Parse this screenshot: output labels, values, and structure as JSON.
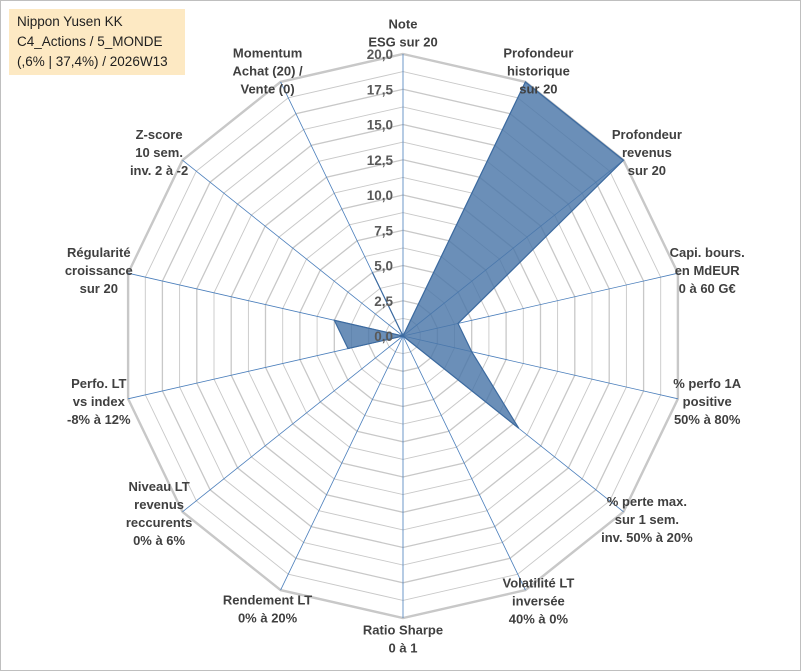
{
  "title_box": {
    "line1": "Nippon Yusen KK",
    "line2": "C4_Actions / 5_MONDE",
    "line3": "(,6% | 37,4%) / 2026W13"
  },
  "chart_data": {
    "type": "radar",
    "rmax": 20,
    "ticks": [
      "0,0",
      "2,5",
      "5,0",
      "7,5",
      "10,0",
      "12,5",
      "15,0",
      "17,5",
      "20,0"
    ],
    "tick_values": [
      0,
      2.5,
      5,
      7.5,
      10,
      12.5,
      15,
      17.5,
      20
    ],
    "minor_step": 1.25,
    "axes": [
      {
        "label": [
          "Note",
          "ESG sur 20"
        ],
        "value": 0
      },
      {
        "label": [
          "Profondeur",
          "historique",
          "sur 20"
        ],
        "value": 20
      },
      {
        "label": [
          "Profondeur",
          "revenus",
          "sur 20"
        ],
        "value": 20
      },
      {
        "label": [
          "Capi. bours.",
          "en MdEUR",
          "0 à 60 G€"
        ],
        "value": 4
      },
      {
        "label": [
          "% perfo 1A",
          "positive",
          "50% à 80%"
        ],
        "value": 5
      },
      {
        "label": [
          "% perte max.",
          "sur 1 sem.",
          "inv. 50% à 20%"
        ],
        "value": 10.5
      },
      {
        "label": [
          "Volatilité LT",
          "inversée",
          "40% à 0%"
        ],
        "value": 0
      },
      {
        "label": [
          "Ratio Sharpe",
          "0 à 1"
        ],
        "value": 0
      },
      {
        "label": [
          "Rendement LT",
          "0% à 20%"
        ],
        "value": 0
      },
      {
        "label": [
          "Niveau LT",
          "revenus",
          "reccurents",
          "0% à 6%"
        ],
        "value": 0
      },
      {
        "label": [
          "Perfo. LT",
          "vs index",
          "-8% à 12%"
        ],
        "value": 4
      },
      {
        "label": [
          "Régularité",
          "croissance",
          "sur 20"
        ],
        "value": 5
      },
      {
        "label": [
          "Z-score",
          "10 sem.",
          "inv. 2 à -2"
        ],
        "value": 0
      },
      {
        "label": [
          "Momentum",
          "Achat (20) /",
          "Vente (0)"
        ],
        "value": 5
      }
    ],
    "series_color": "#4a76a8",
    "grid_color": "#c8c8c8",
    "spoke_color": "#4a7ebb"
  }
}
